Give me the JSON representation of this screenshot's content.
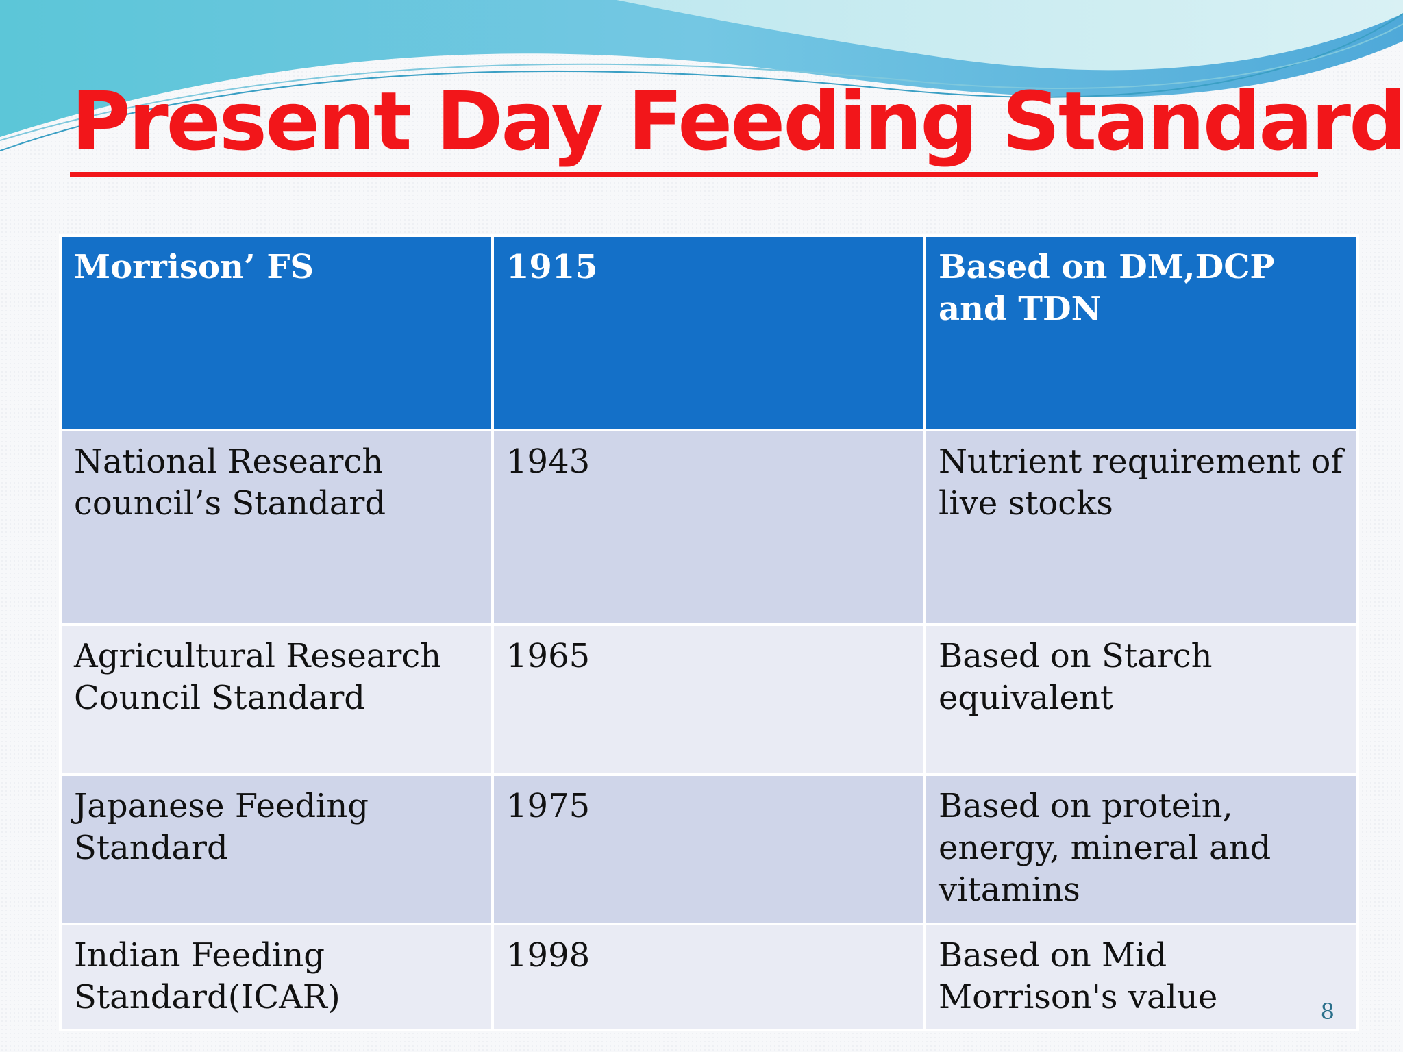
{
  "slide": {
    "title": "Present Day Feeding Standards",
    "page_number": "8"
  },
  "table": {
    "rows": [
      {
        "standard": "Morrison’ FS",
        "year": "1915",
        "basis": "Based on DM,DCP and TDN"
      },
      {
        "standard": "National Research council’s Standard",
        "year": "1943",
        "basis": "Nutrient requirement of live stocks"
      },
      {
        "standard": "Agricultural Research Council Standard",
        "year": "1965",
        "basis": "Based on Starch equivalent"
      },
      {
        "standard": "Japanese Feeding Standard",
        "year": "1975",
        "basis": "Based on protein, energy, mineral and vitamins"
      },
      {
        "standard": "Indian Feeding Standard(ICAR)",
        "year": "1998",
        "basis": "Based on Mid Morrison's value"
      }
    ]
  },
  "colors": {
    "title": "#f2161a",
    "header_row": "#1470c8",
    "row_dark": "#cfd5e9",
    "row_light": "#e9ebf4"
  }
}
